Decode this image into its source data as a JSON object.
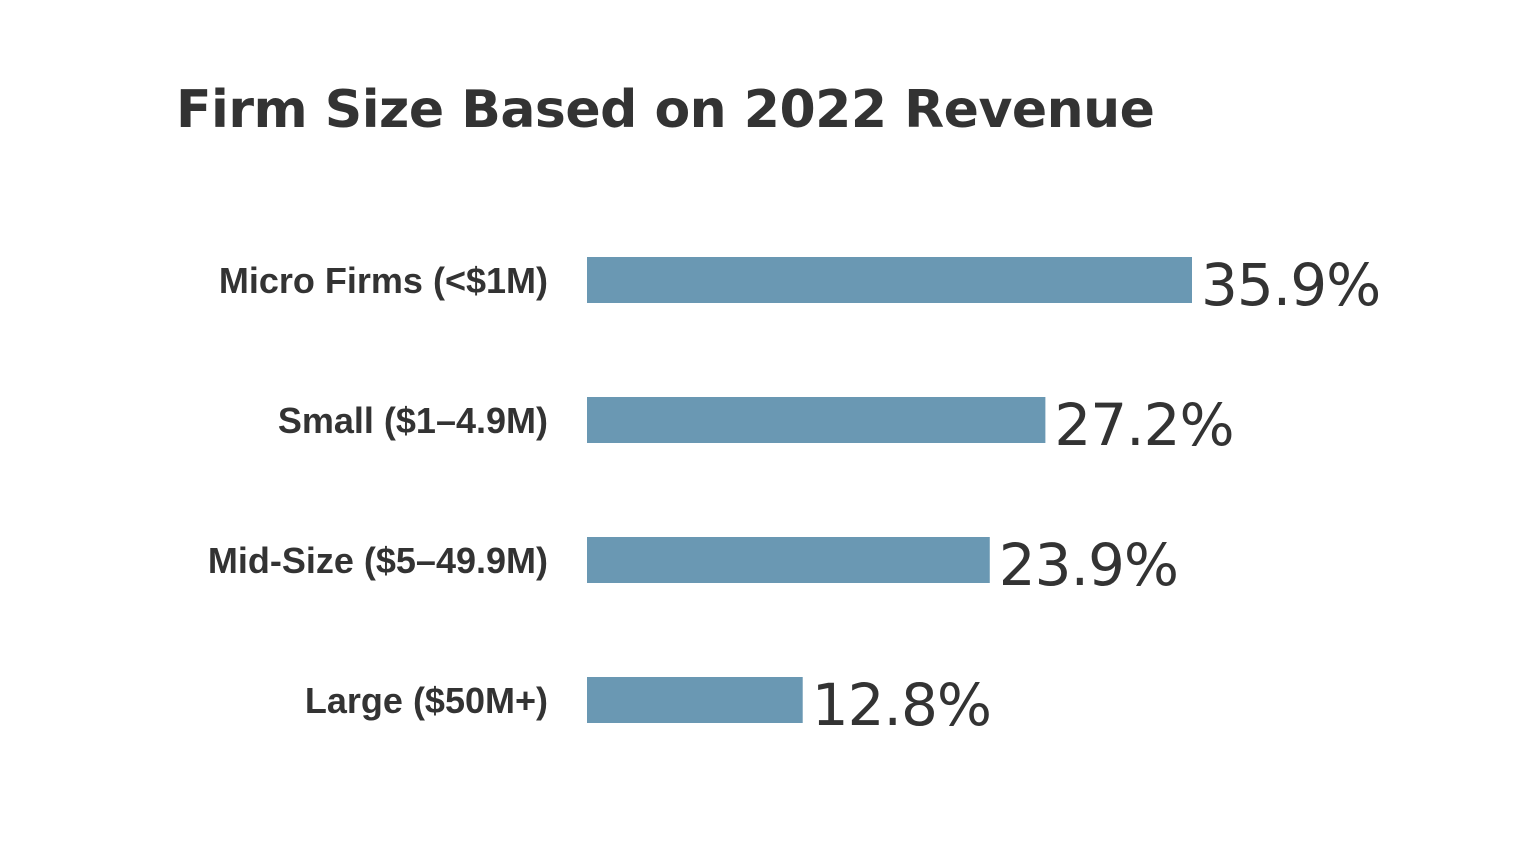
{
  "chart_data": {
    "type": "bar",
    "orientation": "horizontal",
    "title": "Firm Size Based on 2022 Revenue",
    "categories": [
      "Micro Firms (<$1M)",
      "Small ($1–4.9M)",
      "Mid-Size ($5–49.9M)",
      "Large ($50M+)"
    ],
    "values": [
      35.9,
      27.2,
      23.9,
      12.8
    ],
    "value_labels": [
      "35.9%",
      "27.2%",
      "23.9%",
      "12.8%"
    ],
    "xlim": [
      0,
      35.9
    ],
    "grid": false,
    "legend": "none",
    "bar_color": "#6a98b3",
    "text_color": "#333333"
  }
}
